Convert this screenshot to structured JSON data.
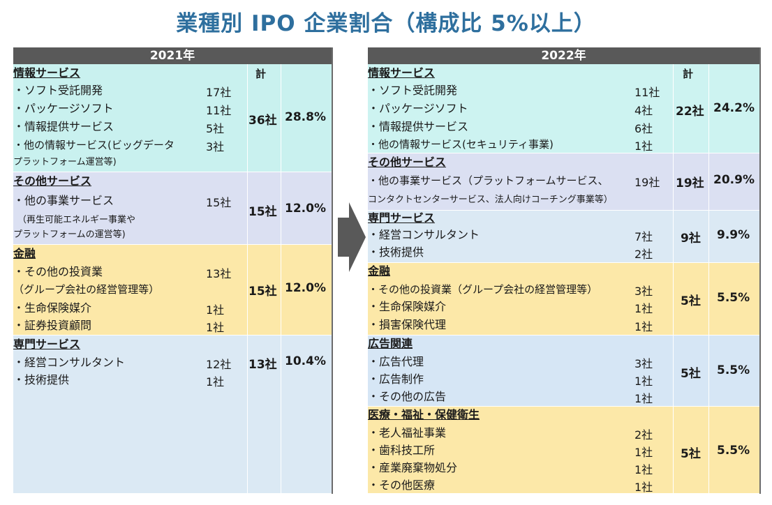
{
  "title": "業種別 IPO 企業割合（構成比 5%以上）",
  "kei_label": "計",
  "y2021": {
    "year": "2021年",
    "sections": [
      {
        "name": "情報サービス",
        "total": "36社",
        "pct": "28.8%",
        "rows": [
          [
            "・ソフト受託開発",
            "17社"
          ],
          [
            "・パッケージソフト",
            "11社"
          ],
          [
            "・情報提供サービス",
            "5社"
          ],
          [
            "・他の情報サービス(ビッグデータ",
            "3社"
          ],
          [
            "プラットフォーム運営等)",
            ""
          ]
        ]
      },
      {
        "name": "その他サービス",
        "total": "15社",
        "pct": "12.0%",
        "rows": [
          [
            "・他の事業サービス",
            "15社"
          ],
          [
            "（再生可能エネルギー事業や",
            ""
          ],
          [
            "プラットフォームの運営等)",
            ""
          ]
        ]
      },
      {
        "name": "金融",
        "total": "15社",
        "pct": "12.0%",
        "rows": [
          [
            "・その他の投資業",
            "13社"
          ],
          [
            "（グループ会社の経営管理等）",
            ""
          ],
          [
            "・生命保険媒介",
            "1社"
          ],
          [
            "・証券投資顧問",
            "1社"
          ]
        ]
      },
      {
        "name": "専門サービス",
        "total": "13社",
        "pct": "10.4%",
        "rows": [
          [
            "・経営コンサルタント",
            "12社"
          ],
          [
            "・技術提供",
            "1社"
          ]
        ]
      }
    ]
  },
  "y2022": {
    "year": "2022年",
    "sections": [
      {
        "name": "情報サービス",
        "total": "22社",
        "pct": "24.2%",
        "rows": [
          [
            "・ソフト受託開発",
            "11社"
          ],
          [
            "・パッケージソフト",
            "4社"
          ],
          [
            "・情報提供サービス",
            "6社"
          ],
          [
            "・他の情報サービス(セキュリティ事業)",
            "1社"
          ]
        ]
      },
      {
        "name": "その他サービス",
        "total": "19社",
        "pct": "20.9%",
        "rows": [
          [
            "・他の事業サービス（プラットフォームサービス、",
            "19社"
          ],
          [
            "コンタクトセンターサービス、法人向けコーチング事業等）",
            ""
          ]
        ]
      },
      {
        "name": "専門サービス",
        "total": "9社",
        "pct": "9.9%",
        "rows": [
          [
            "・経営コンサルタント",
            "7社"
          ],
          [
            "・技術提供",
            "2社"
          ]
        ]
      },
      {
        "name": "金融",
        "total": "5社",
        "pct": "5.5%",
        "rows": [
          [
            "・その他の投資業（グループ会社の経営管理等）",
            "3社"
          ],
          [
            "・生命保険媒介",
            "1社"
          ],
          [
            "・損害保険代理",
            "1社"
          ]
        ]
      },
      {
        "name": "広告関連",
        "total": "5社",
        "pct": "5.5%",
        "rows": [
          [
            "・広告代理",
            "3社"
          ],
          [
            "・広告制作",
            "1社"
          ],
          [
            "・その他の広告",
            "1社"
          ]
        ]
      },
      {
        "name": "医療・福祉・保健衛生",
        "total": "5社",
        "pct": "5.5%",
        "rows": [
          [
            "・老人福祉事業",
            "2社"
          ],
          [
            "・歯科技工所",
            "1社"
          ],
          [
            "・産業廃棄物処分",
            "1社"
          ],
          [
            "・その他医療",
            "1社"
          ]
        ]
      }
    ]
  }
}
